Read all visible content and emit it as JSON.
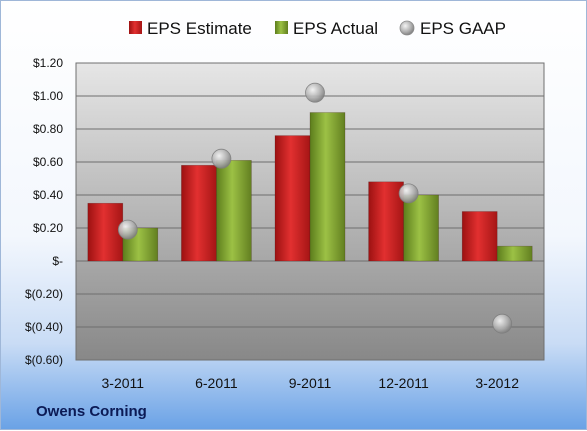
{
  "company": "Owens Corning",
  "chart_data": {
    "type": "bar",
    "categories": [
      "3-2011",
      "6-2011",
      "9-2011",
      "12-2011",
      "3-2012"
    ],
    "series": [
      {
        "name": "EPS Estimate",
        "kind": "bar",
        "color": "#cc1f1f",
        "values": [
          0.35,
          0.58,
          0.76,
          0.48,
          0.3
        ]
      },
      {
        "name": "EPS Actual",
        "kind": "bar",
        "color": "#7da12e",
        "values": [
          0.2,
          0.61,
          0.9,
          0.4,
          0.09
        ]
      },
      {
        "name": "EPS GAAP",
        "kind": "marker",
        "color": "#b5b5b5",
        "values": [
          0.19,
          0.62,
          1.02,
          0.41,
          -0.38
        ]
      }
    ],
    "ylim": [
      -0.6,
      1.2
    ],
    "yticks": [
      1.2,
      1.0,
      0.8,
      0.6,
      0.4,
      0.2,
      0,
      -0.2,
      -0.4,
      -0.6
    ],
    "ytick_labels": [
      "$1.20",
      "$1.00",
      "$0.80",
      "$0.60",
      "$0.40",
      "$0.20",
      "$-",
      "$(0.20)",
      "$(0.40)",
      "$(0.60)"
    ],
    "grid": true,
    "legend_position": "top"
  }
}
